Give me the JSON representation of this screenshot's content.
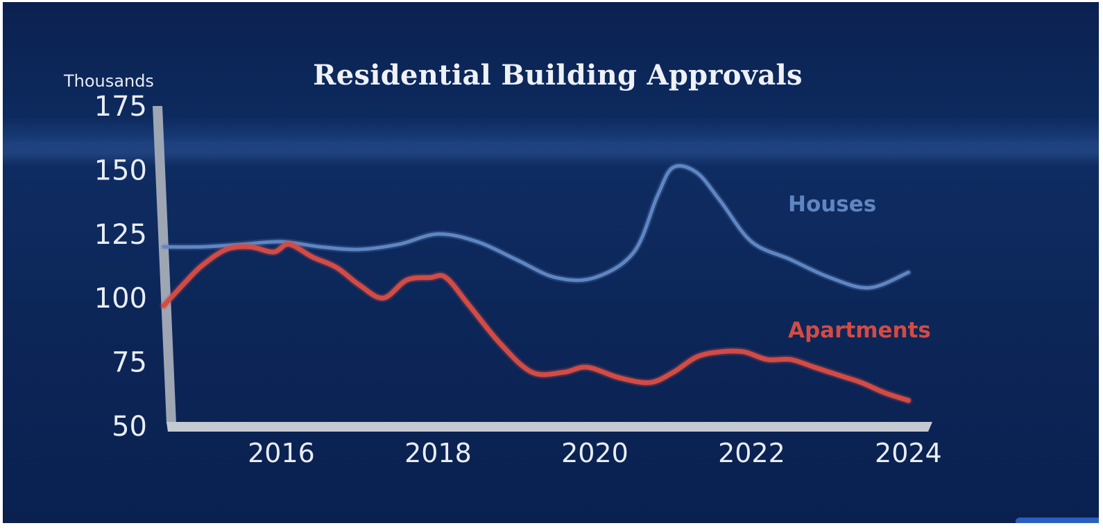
{
  "colors": {
    "houses": "#5f86c2",
    "apartments": "#d24b45",
    "axis": "#b9bfca"
  },
  "chart_data": {
    "type": "line",
    "title": "Residential Building Approvals",
    "ylabel": "Thousands",
    "xlabel": "",
    "ylim": [
      50,
      175
    ],
    "y_ticks": [
      "175",
      "150",
      "125",
      "100",
      "75",
      "50"
    ],
    "y_tick_values": [
      175,
      150,
      125,
      100,
      75,
      50
    ],
    "x_ticks": [
      "2016",
      "2018",
      "2020",
      "2022",
      "2024"
    ],
    "x_tick_values": [
      2016,
      2018,
      2020,
      2022,
      2024
    ],
    "xlim": [
      2014.5,
      2024.2
    ],
    "grid": false,
    "legend": "inline labels",
    "series": [
      {
        "name": "Houses",
        "x": [
          2014.5,
          2015.0,
          2015.5,
          2016.0,
          2016.5,
          2017.0,
          2017.5,
          2018.0,
          2018.5,
          2019.0,
          2019.5,
          2020.0,
          2020.5,
          2020.8,
          2021.0,
          2021.3,
          2021.6,
          2022.0,
          2022.5,
          2023.0,
          2023.5,
          2024.0
        ],
        "y": [
          120,
          120,
          121,
          122,
          120,
          119,
          121,
          125,
          122,
          115,
          108,
          108,
          118,
          140,
          151,
          149,
          138,
          122,
          115,
          108,
          104,
          110
        ]
      },
      {
        "name": "Apartments",
        "x": [
          2014.5,
          2014.8,
          2015.0,
          2015.3,
          2015.6,
          2015.9,
          2016.1,
          2016.4,
          2016.7,
          2017.0,
          2017.3,
          2017.6,
          2017.9,
          2018.1,
          2018.4,
          2018.8,
          2019.2,
          2019.6,
          2019.9,
          2020.3,
          2020.7,
          2021.0,
          2021.3,
          2021.6,
          2021.9,
          2022.2,
          2022.5,
          2022.8,
          2023.1,
          2023.4,
          2023.7,
          2024.0
        ],
        "y": [
          97,
          107,
          113,
          119,
          120,
          118,
          121,
          116,
          112,
          105,
          100,
          107,
          108,
          108,
          97,
          82,
          71,
          71,
          73,
          69,
          67,
          71,
          77,
          79,
          79,
          76,
          76,
          73,
          70,
          67,
          63,
          60
        ]
      }
    ]
  }
}
